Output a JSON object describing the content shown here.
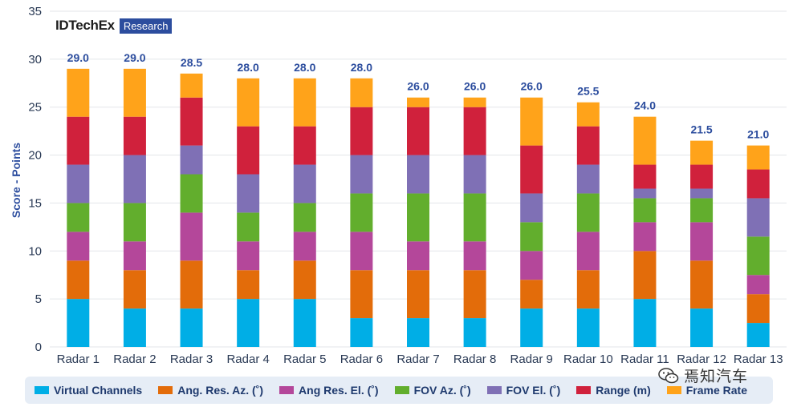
{
  "brand": {
    "name": "IDTechEx",
    "badge": "Research"
  },
  "watermark": {
    "text": "焉知汽车"
  },
  "chart_data": {
    "type": "bar",
    "stacked": true,
    "title": "",
    "xlabel": "",
    "ylabel": "Score - Points",
    "ylim": [
      0,
      35
    ],
    "yticks": [
      0,
      5,
      10,
      15,
      20,
      25,
      30,
      35
    ],
    "grid": true,
    "legend_position": "bottom",
    "categories": [
      "Radar 1",
      "Radar 2",
      "Radar 3",
      "Radar 4",
      "Radar 5",
      "Radar 6",
      "Radar 7",
      "Radar 8",
      "Radar 9",
      "Radar 10",
      "Radar 11",
      "Radar 12",
      "Radar 13"
    ],
    "totals": [
      "29.0",
      "29.0",
      "28.5",
      "28.0",
      "28.0",
      "28.0",
      "26.0",
      "26.0",
      "26.0",
      "25.5",
      "24.0",
      "21.5",
      "21.0"
    ],
    "series": [
      {
        "name": "Virtual Channels",
        "color": "#00aee6",
        "values": [
          5,
          4,
          4,
          5,
          5,
          3,
          3,
          3,
          4,
          4,
          5,
          4,
          2.5
        ]
      },
      {
        "name": "Ang. Res. Az. (˚)",
        "color": "#e36c0a",
        "values": [
          4,
          4,
          5,
          3,
          4,
          5,
          5,
          5,
          3,
          4,
          5,
          5,
          3
        ]
      },
      {
        "name": "Ang Res. El.  (˚)",
        "color": "#b4479a",
        "values": [
          3,
          3,
          5,
          3,
          3,
          4,
          3,
          3,
          3,
          4,
          3,
          4,
          2
        ]
      },
      {
        "name": "FOV Az. (˚)",
        "color": "#62ae2d",
        "values": [
          3,
          4,
          4,
          3,
          3,
          4,
          5,
          5,
          3,
          4,
          2.5,
          2.5,
          4
        ]
      },
      {
        "name": "FOV El. (˚)",
        "color": "#7f70b5",
        "values": [
          4,
          5,
          3,
          4,
          4,
          4,
          4,
          4,
          3,
          3,
          1,
          1,
          4
        ]
      },
      {
        "name": "Range (m)",
        "color": "#d0213c",
        "values": [
          5,
          4,
          5,
          5,
          4,
          5,
          5,
          5,
          5,
          4,
          2.5,
          2.5,
          3
        ]
      },
      {
        "name": "Frame Rate",
        "color": "#ffa31a",
        "values": [
          5,
          5,
          2.5,
          5,
          5,
          3,
          1,
          1,
          5,
          2.5,
          5,
          2.5,
          2.5
        ]
      }
    ]
  }
}
